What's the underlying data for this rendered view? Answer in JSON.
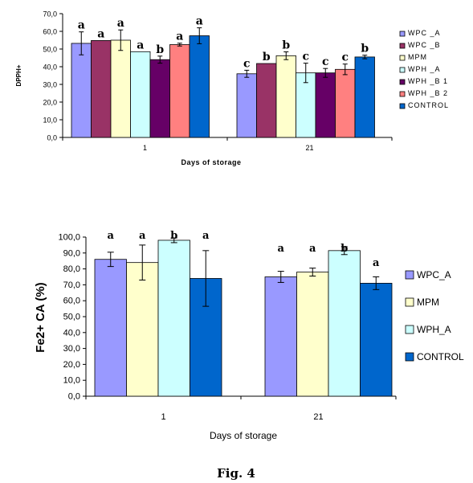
{
  "chart_data": [
    {
      "type": "bar",
      "ylabel": "DPPH+",
      "xlabel": "Days of storage",
      "ylim": [
        0,
        70
      ],
      "yticks": [
        "0,0",
        "10,0",
        "20,0",
        "30,0",
        "40,0",
        "50,0",
        "60,0",
        "70,0"
      ],
      "categories": [
        "1",
        "21"
      ],
      "legend_position": "right",
      "series": [
        {
          "name": "WPC_A",
          "color": "#9999ff",
          "values": [
            53.2,
            36.0
          ],
          "errors": [
            6.5,
            2.0
          ],
          "labels": [
            "a",
            "c"
          ]
        },
        {
          "name": "WPC_B",
          "color": "#993366",
          "values": [
            54.8,
            41.8
          ],
          "errors": [
            0,
            0
          ],
          "labels": [
            "a",
            "b"
          ]
        },
        {
          "name": "MPM",
          "color": "#ffffcc",
          "values": [
            55.0,
            46.2
          ],
          "errors": [
            5.8,
            2.2
          ],
          "labels": [
            "a",
            "b"
          ]
        },
        {
          "name": "WPH_A",
          "color": "#ccffff",
          "values": [
            48.5,
            36.5
          ],
          "errors": [
            0,
            5.5
          ],
          "labels": [
            "a",
            "c"
          ]
        },
        {
          "name": "WPH_B1",
          "color": "#660066",
          "values": [
            44.0,
            36.5
          ],
          "errors": [
            2.0,
            2.5
          ],
          "labels": [
            "b",
            "c"
          ]
        },
        {
          "name": "WPH_B2",
          "color": "#ff8080",
          "values": [
            52.5,
            38.5
          ],
          "errors": [
            0.8,
            3.0
          ],
          "labels": [
            "a",
            "c"
          ]
        },
        {
          "name": "CONTROL",
          "color": "#0066cc",
          "values": [
            57.5,
            45.5
          ],
          "errors": [
            4.5,
            1.0
          ],
          "labels": [
            "a",
            "b"
          ]
        }
      ]
    },
    {
      "type": "bar",
      "ylabel": "Fe2+ CA (%)",
      "xlabel": "Days of storage",
      "ylim": [
        0,
        100
      ],
      "yticks": [
        "0,0",
        "10,0",
        "20,0",
        "30,0",
        "40,0",
        "50,0",
        "60,0",
        "70,0",
        "80,0",
        "90,0",
        "100,0"
      ],
      "categories": [
        "1",
        "21"
      ],
      "legend_position": "right",
      "series": [
        {
          "name": "WPC_A",
          "color": "#9999ff",
          "values": [
            86.0,
            75.0
          ],
          "errors": [
            4.5,
            3.5
          ],
          "labels": [
            "a",
            "a"
          ]
        },
        {
          "name": "MPM",
          "color": "#ffffcc",
          "values": [
            84.0,
            78.0
          ],
          "errors": [
            11.0,
            2.5
          ],
          "labels": [
            "a",
            "a"
          ]
        },
        {
          "name": "WPH_A",
          "color": "#ccffff",
          "values": [
            98.0,
            91.5
          ],
          "errors": [
            1.5,
            2.5
          ],
          "labels": [
            "b",
            "b"
          ]
        },
        {
          "name": "CONTROL",
          "color": "#0066cc",
          "values": [
            74.0,
            71.0
          ],
          "errors": [
            17.5,
            4.0
          ],
          "labels": [
            "a",
            "a"
          ]
        }
      ]
    }
  ],
  "caption": "Fig. 4"
}
